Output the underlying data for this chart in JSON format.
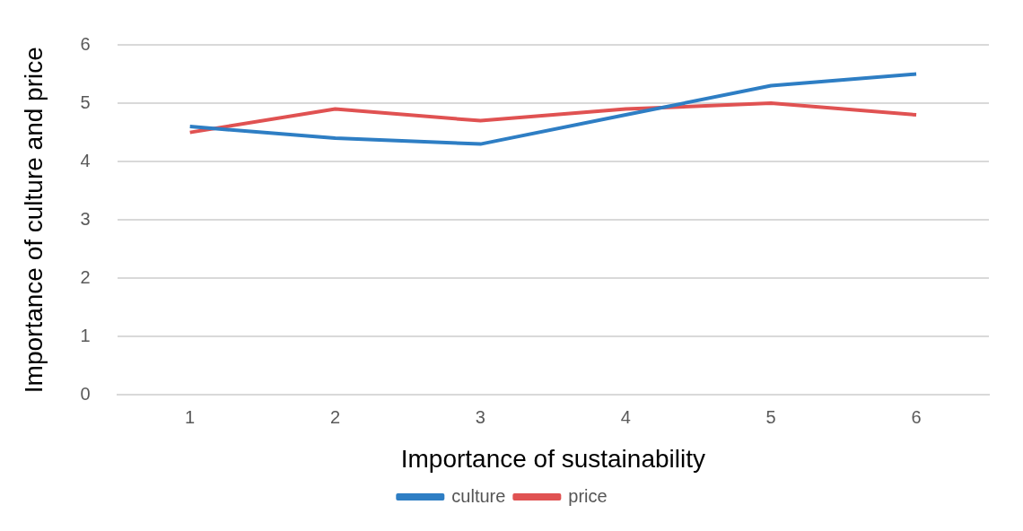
{
  "chart_data": {
    "type": "line",
    "xlabel": "Importance of sustainability",
    "ylabel": "Importance of culture and price",
    "categories": [
      "1",
      "2",
      "3",
      "4",
      "5",
      "6"
    ],
    "series": [
      {
        "name": "culture",
        "color": "#2e7ec4",
        "values": [
          4.6,
          4.4,
          4.3,
          4.8,
          5.3,
          5.5
        ]
      },
      {
        "name": "price",
        "color": "#e05252",
        "values": [
          4.5,
          4.9,
          4.7,
          4.9,
          5.0,
          4.8
        ]
      }
    ],
    "ylim": [
      0,
      6
    ],
    "yticks": [
      0,
      1,
      2,
      3,
      4,
      5,
      6
    ],
    "grid": "y",
    "legend": "bottom",
    "marker": "none",
    "line_style": "solid"
  }
}
